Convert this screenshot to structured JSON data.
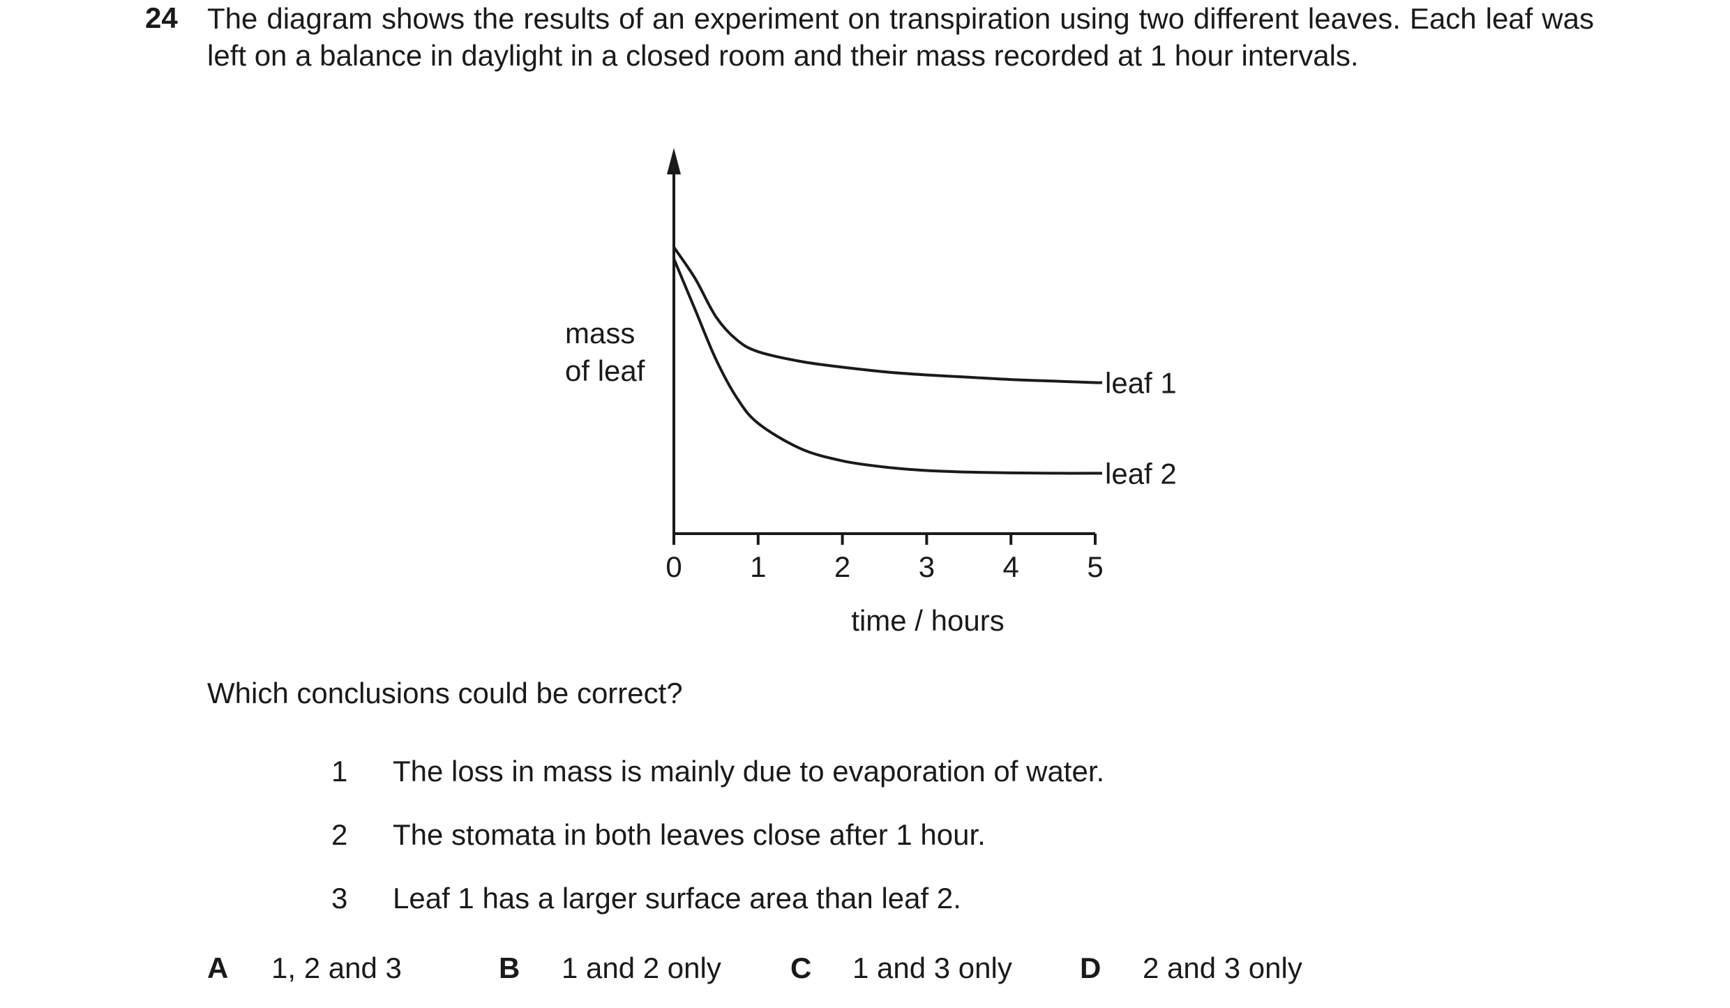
{
  "question": {
    "number": "24",
    "stem": "The diagram shows the results of an experiment on transpiration using two different leaves. Each leaf was left on a balance in daylight in a closed room and their mass recorded at 1 hour intervals."
  },
  "chart_data": {
    "type": "line",
    "ylabel_line1": "mass",
    "ylabel_line2": "of leaf",
    "xlabel": "time / hours",
    "xlim": [
      0,
      5
    ],
    "ylim": [
      0,
      1
    ],
    "xticks": [
      "0",
      "1",
      "2",
      "3",
      "4",
      "5"
    ],
    "grid": false,
    "series": [
      {
        "name": "leaf 1",
        "x": [
          0,
          0.25,
          0.5,
          0.75,
          1,
          1.5,
          2,
          2.5,
          3,
          3.5,
          4,
          4.5,
          5
        ],
        "y": [
          0.74,
          0.66,
          0.56,
          0.5,
          0.47,
          0.445,
          0.43,
          0.418,
          0.41,
          0.404,
          0.398,
          0.394,
          0.39
        ]
      },
      {
        "name": "leaf 2",
        "x": [
          0,
          0.25,
          0.5,
          0.75,
          1,
          1.5,
          2,
          2.5,
          3,
          3.5,
          4,
          4.5,
          5
        ],
        "y": [
          0.71,
          0.58,
          0.45,
          0.35,
          0.285,
          0.22,
          0.188,
          0.172,
          0.163,
          0.159,
          0.157,
          0.156,
          0.156
        ]
      }
    ]
  },
  "prompt": "Which conclusions could be correct?",
  "statements": [
    {
      "num": "1",
      "text": "The loss in mass is mainly due to evaporation of water."
    },
    {
      "num": "2",
      "text": "The stomata in both leaves close after 1 hour."
    },
    {
      "num": "3",
      "text": "Leaf 1 has a larger surface area than leaf 2."
    }
  ],
  "options": [
    {
      "letter": "A",
      "text": "1, 2 and 3"
    },
    {
      "letter": "B",
      "text": "1 and 2 only"
    },
    {
      "letter": "C",
      "text": "1 and 3 only"
    },
    {
      "letter": "D",
      "text": "2 and 3 only"
    }
  ]
}
